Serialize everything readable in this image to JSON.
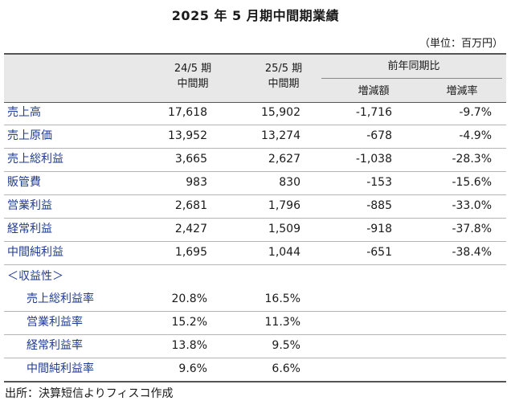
{
  "title": "2025 年 5 月期中間期業績",
  "unit": "（単位：百万円）",
  "header": {
    "col1_line1": "24/5 期",
    "col1_line2": "中間期",
    "col2_line1": "25/5 期",
    "col2_line2": "中間期",
    "group": "前年同期比",
    "sub1": "増減額",
    "sub2": "増減率"
  },
  "rows": [
    {
      "label": "売上高",
      "prev": "17,618",
      "curr": "15,902",
      "diff": "-1,716",
      "rate": "-9.7%"
    },
    {
      "label": "売上原価",
      "prev": "13,952",
      "curr": "13,274",
      "diff": "-678",
      "rate": "-4.9%"
    },
    {
      "label": "売上総利益",
      "prev": "3,665",
      "curr": "2,627",
      "diff": "-1,038",
      "rate": "-28.3%"
    },
    {
      "label": "販管費",
      "prev": "983",
      "curr": "830",
      "diff": "-153",
      "rate": "-15.6%"
    },
    {
      "label": "営業利益",
      "prev": "2,681",
      "curr": "1,796",
      "diff": "-885",
      "rate": "-33.0%"
    },
    {
      "label": "経常利益",
      "prev": "2,427",
      "curr": "1,509",
      "diff": "-918",
      "rate": "-37.8%"
    },
    {
      "label": "中間純利益",
      "prev": "1,695",
      "curr": "1,044",
      "diff": "-651",
      "rate": "-38.4%"
    }
  ],
  "profitability": {
    "heading": "＜収益性＞",
    "rows": [
      {
        "label": "売上総利益率",
        "prev": "20.8%",
        "curr": "16.5%"
      },
      {
        "label": "営業利益率",
        "prev": "15.2%",
        "curr": "11.3%"
      },
      {
        "label": "経常利益率",
        "prev": "13.8%",
        "curr": "9.5%"
      },
      {
        "label": "中間純利益率",
        "prev": "9.6%",
        "curr": "6.6%"
      }
    ]
  },
  "source": "出所：決算短信よりフィスコ作成"
}
